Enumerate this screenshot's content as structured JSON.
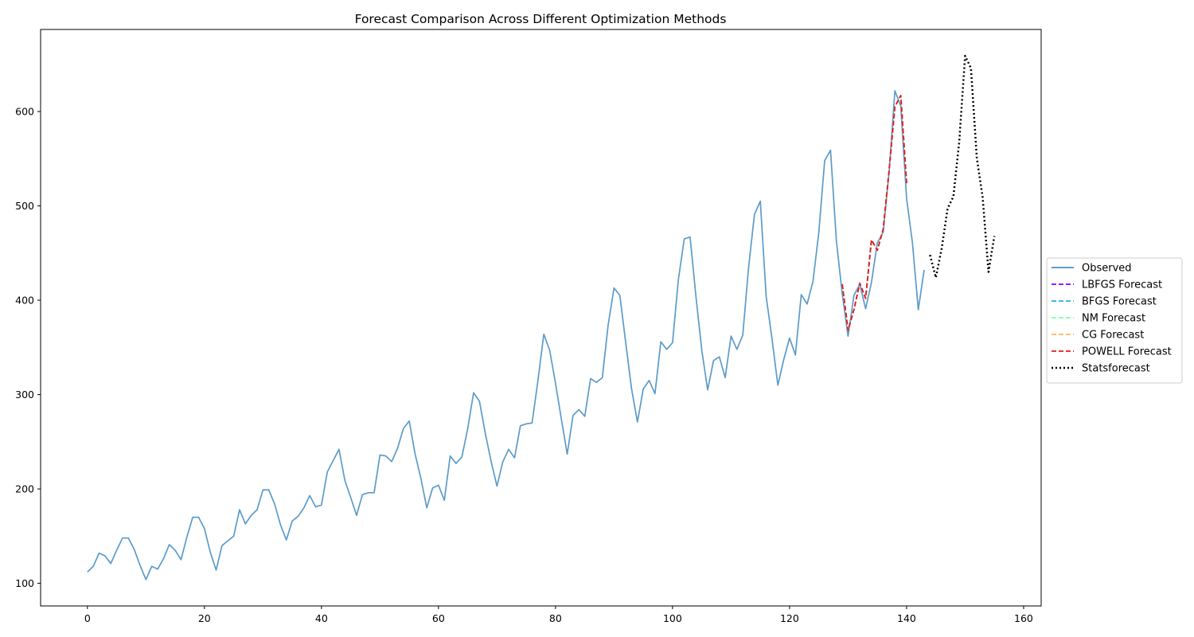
{
  "chart_data": {
    "type": "line",
    "title": "Forecast Comparison Across Different Optimization Methods",
    "xlabel": "",
    "ylabel": "",
    "xlim": [
      -8,
      163
    ],
    "ylim": [
      76,
      687
    ],
    "xticks": [
      0,
      20,
      40,
      60,
      80,
      100,
      120,
      140,
      160
    ],
    "yticks": [
      100,
      200,
      300,
      400,
      500,
      600
    ],
    "grid": false,
    "legend_position": "right-center (outside axes)",
    "series": [
      {
        "name": "Observed",
        "color": "#4a90c4",
        "style": "solid",
        "x_start": 0,
        "values": [
          112,
          118,
          132,
          129,
          121,
          135,
          148,
          148,
          136,
          119,
          104,
          118,
          115,
          126,
          141,
          135,
          125,
          149,
          170,
          170,
          158,
          133,
          114,
          140,
          145,
          150,
          178,
          163,
          172,
          178,
          199,
          199,
          184,
          162,
          146,
          166,
          171,
          180,
          193,
          181,
          183,
          218,
          230,
          242,
          209,
          191,
          172,
          194,
          196,
          196,
          236,
          235,
          229,
          243,
          264,
          272,
          237,
          211,
          180,
          201,
          204,
          188,
          235,
          227,
          234,
          264,
          302,
          293,
          259,
          229,
          203,
          229,
          242,
          233,
          267,
          269,
          270,
          315,
          364,
          347,
          312,
          274,
          237,
          278,
          284,
          277,
          317,
          313,
          318,
          374,
          413,
          405,
          355,
          306,
          271,
          306,
          315,
          301,
          356,
          348,
          355,
          422,
          465,
          467,
          404,
          347,
          305,
          336,
          340,
          318,
          362,
          348,
          363,
          435,
          491,
          505,
          404,
          359,
          310,
          337,
          360,
          342,
          406,
          396,
          420,
          472,
          548,
          559,
          463,
          407,
          362,
          405,
          417,
          391,
          419,
          461,
          472,
          535,
          622,
          606,
          508,
          461,
          390,
          432
        ]
      },
      {
        "name": "LBFGS Forecast",
        "color": "#7f00ff",
        "style": "dashed",
        "x_start": 129,
        "values": [
          417,
          368,
          390,
          418,
          402,
          464,
          453,
          475,
          537,
          605,
          617,
          524
        ]
      },
      {
        "name": "BFGS Forecast",
        "color": "#20b2e0",
        "style": "dashed",
        "x_start": 129,
        "values": [
          417,
          368,
          390,
          418,
          402,
          464,
          453,
          475,
          537,
          605,
          617,
          524
        ]
      },
      {
        "name": "NM Forecast",
        "color": "#80ffb4",
        "style": "dashed",
        "x_start": 129,
        "values": [
          417,
          368,
          390,
          418,
          402,
          464,
          453,
          475,
          537,
          605,
          617,
          524
        ]
      },
      {
        "name": "CG Forecast",
        "color": "#ffb360",
        "style": "dashed",
        "x_start": 129,
        "values": [
          417,
          368,
          390,
          418,
          402,
          464,
          453,
          475,
          537,
          605,
          617,
          524
        ]
      },
      {
        "name": "POWELL Forecast",
        "color": "#e41a1c",
        "style": "dashed",
        "x_start": 129,
        "values": [
          417,
          368,
          390,
          418,
          402,
          464,
          453,
          475,
          537,
          605,
          617,
          524
        ]
      },
      {
        "name": "Statsforecast",
        "color": "#000000",
        "style": "dotted",
        "x_start": 144,
        "values": [
          448,
          424,
          455,
          497,
          510,
          568,
          659,
          646,
          551,
          509,
          430,
          468
        ]
      }
    ]
  }
}
